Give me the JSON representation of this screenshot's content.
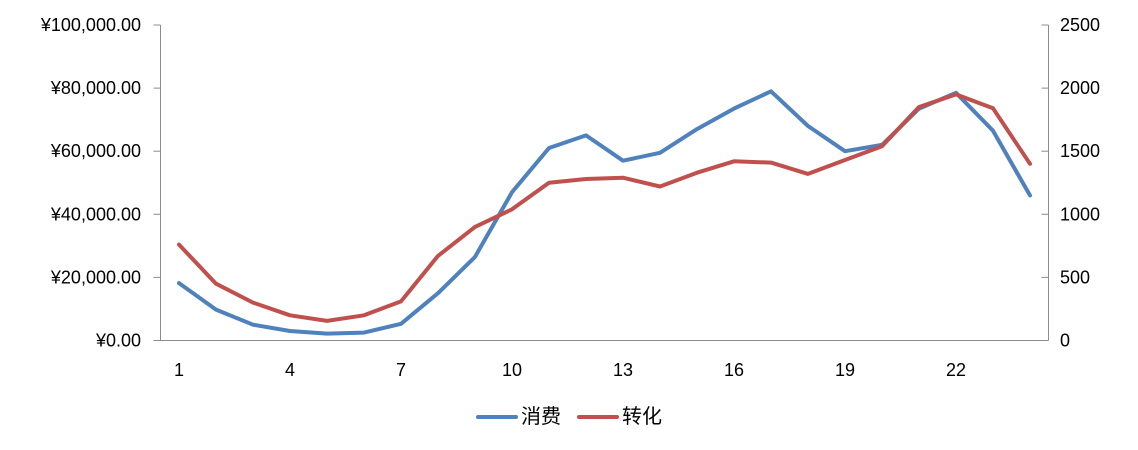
{
  "chart_data": {
    "type": "line",
    "x": [
      1,
      2,
      3,
      4,
      5,
      6,
      7,
      8,
      9,
      10,
      11,
      12,
      13,
      14,
      15,
      16,
      17,
      18,
      19,
      20,
      21,
      22,
      23,
      24
    ],
    "x_tick_labels": [
      "1",
      "4",
      "7",
      "10",
      "13",
      "16",
      "19",
      "22"
    ],
    "x_tick_positions": [
      1,
      4,
      7,
      10,
      13,
      16,
      19,
      22
    ],
    "series": [
      {
        "name": "消费",
        "axis": "left",
        "color": "#4F81BD",
        "values": [
          18200,
          9800,
          5000,
          3000,
          2200,
          2500,
          5300,
          15000,
          26500,
          47000,
          61000,
          65000,
          57000,
          59500,
          67000,
          73500,
          79000,
          68000,
          60000,
          62000,
          73500,
          78500,
          66500,
          46000
        ]
      },
      {
        "name": "转化",
        "axis": "right",
        "color": "#C0504D",
        "values": [
          760,
          450,
          300,
          200,
          155,
          200,
          310,
          670,
          900,
          1040,
          1250,
          1280,
          1290,
          1220,
          1330,
          1420,
          1410,
          1320,
          1430,
          1540,
          1850,
          1950,
          1840,
          1400
        ]
      }
    ],
    "left_axis": {
      "min": 0,
      "max": 100000,
      "step": 20000,
      "tick_labels": [
        "¥0.00",
        "¥20,000.00",
        "¥40,000.00",
        "¥60,000.00",
        "¥80,000.00",
        "¥100,000.00"
      ]
    },
    "right_axis": {
      "min": 0,
      "max": 2500,
      "step": 500,
      "tick_labels": [
        "0",
        "500",
        "1000",
        "1500",
        "2000",
        "2500"
      ]
    },
    "title": "",
    "xlabel": "",
    "ylabel": "",
    "grid": false,
    "legend_position": "bottom",
    "axis_color": "#8C8C8C",
    "text_color": "#000000"
  }
}
